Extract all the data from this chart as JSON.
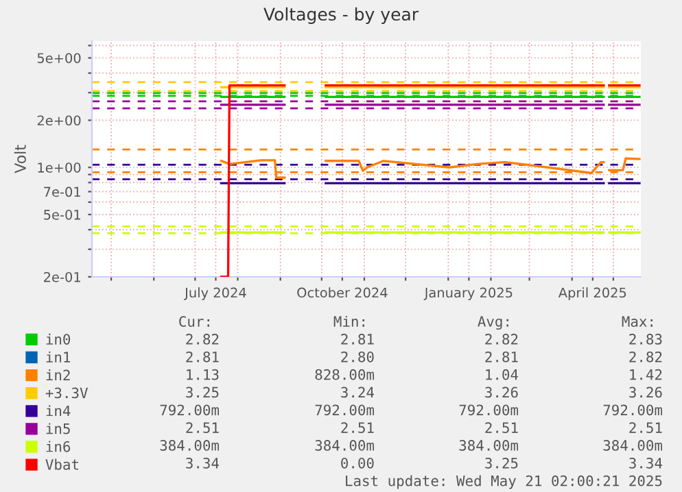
{
  "chart_data": {
    "type": "line",
    "title": "Voltages - by year",
    "ylabel": "Volt",
    "log": true,
    "grid": true,
    "legend": "bottom",
    "line_style": "solid",
    "marker": "none",
    "xlim": [
      "2024-04-17",
      "2025-05-21"
    ],
    "xticks": [
      {
        "value": "2024-05-01",
        "label": null
      },
      {
        "value": "2024-06-01",
        "label": null
      },
      {
        "value": "2024-07-01",
        "label": null
      },
      {
        "value": "2024-07-16",
        "label": "July 2024"
      },
      {
        "value": "2024-08-01",
        "label": null
      },
      {
        "value": "2024-09-01",
        "label": null
      },
      {
        "value": "2024-10-01",
        "label": null
      },
      {
        "value": "2024-10-16",
        "label": "October 2024"
      },
      {
        "value": "2024-11-01",
        "label": null
      },
      {
        "value": "2024-12-01",
        "label": null
      },
      {
        "value": "2025-01-01",
        "label": null
      },
      {
        "value": "2025-01-16",
        "label": "January 2025"
      },
      {
        "value": "2025-02-01",
        "label": null
      },
      {
        "value": "2025-03-01",
        "label": null
      },
      {
        "value": "2025-04-01",
        "label": null
      },
      {
        "value": "2025-04-16",
        "label": "April 2025"
      },
      {
        "value": "2025-05-01",
        "label": null
      }
    ],
    "ylim": [
      0.2,
      6.4
    ],
    "yticks": [
      {
        "value": 0.2,
        "label": "2e-01"
      },
      {
        "value": 0.3,
        "label": null
      },
      {
        "value": 0.4,
        "label": null
      },
      {
        "value": 0.5,
        "label": "5e-01"
      },
      {
        "value": 0.6,
        "label": null
      },
      {
        "value": 0.7,
        "label": "7e-01"
      },
      {
        "value": 0.8,
        "label": null
      },
      {
        "value": 0.9,
        "label": null
      },
      {
        "value": 1,
        "label": "1e+00"
      },
      {
        "value": 2,
        "label": "2e+00"
      },
      {
        "value": 3,
        "label": null
      },
      {
        "value": 4,
        "label": null
      },
      {
        "value": 5,
        "label": "5e+00"
      },
      {
        "value": 6,
        "label": null
      }
    ],
    "series": [
      {
        "name": "in0",
        "color": "#00cc00",
        "x": [
          "2024-07-20",
          "2024-09-04",
          "2024-09-20",
          "2024-10-04",
          "2025-04-24",
          "2025-04-26",
          "2025-04-28",
          "2025-05-20"
        ],
        "values": [
          2.82,
          2.82,
          null,
          2.82,
          2.82,
          null,
          2.82,
          2.82
        ]
      },
      {
        "name": "in1",
        "color": "#0066b3"
      },
      {
        "name": "in2",
        "color": "#ff8000",
        "x": [
          "2024-07-20",
          "2024-07-26",
          "2024-08-18",
          "2024-08-28",
          "2024-08-29",
          "2024-09-04",
          "2024-09-20",
          "2024-10-04",
          "2024-10-28",
          "2024-10-31",
          "2024-11-03",
          "2024-11-15",
          "2025-01-02",
          "2025-01-22",
          "2025-02-11",
          "2025-03-03",
          "2025-04-15",
          "2025-04-22",
          "2025-04-24",
          "2025-04-26",
          "2025-04-28",
          "2025-05-08",
          "2025-05-10",
          "2025-05-20"
        ],
        "values": [
          1.1,
          1.05,
          1.11,
          1.11,
          0.86,
          0.86,
          null,
          1.1,
          1.1,
          0.95,
          1.0,
          1.1,
          1.0,
          1.05,
          1.08,
          1.03,
          0.92,
          1.08,
          1.08,
          null,
          0.96,
          0.96,
          1.14,
          1.13
        ]
      },
      {
        "name": "+3.3V",
        "color": "#ffcc00",
        "x": [
          "2024-07-20",
          "2024-09-04",
          "2024-09-20",
          "2024-10-04",
          "2025-04-24",
          "2025-04-26",
          "2025-04-28",
          "2025-05-20"
        ],
        "values": [
          3.25,
          3.25,
          null,
          3.25,
          3.25,
          null,
          3.25,
          3.25
        ]
      },
      {
        "name": "in4",
        "color": "#330099",
        "x": [
          "2024-07-20",
          "2024-09-04",
          "2024-09-20",
          "2024-10-04",
          "2025-04-24",
          "2025-04-26",
          "2025-04-28",
          "2025-05-20"
        ],
        "values": [
          0.792,
          0.792,
          null,
          0.792,
          0.792,
          null,
          0.792,
          0.792
        ]
      },
      {
        "name": "in5",
        "color": "#990099",
        "x": [
          "2024-07-20",
          "2024-09-04",
          "2024-09-20",
          "2024-10-04",
          "2025-04-24",
          "2025-04-26",
          "2025-04-28",
          "2025-05-20"
        ],
        "values": [
          2.51,
          2.51,
          null,
          2.51,
          2.51,
          null,
          2.51,
          2.51
        ]
      },
      {
        "name": "in6",
        "color": "#ccff00",
        "x": [
          "2024-07-20",
          "2024-09-04",
          "2024-09-20",
          "2024-10-04",
          "2025-04-24",
          "2025-04-26",
          "2025-04-28",
          "2025-05-20"
        ],
        "values": [
          0.384,
          0.384,
          null,
          0.384,
          0.384,
          null,
          0.384,
          0.384
        ]
      },
      {
        "name": "Vbat",
        "color": "#ff0000",
        "x": [
          "2024-07-20",
          "2024-07-25",
          "2024-07-26",
          "2024-09-04",
          "2024-09-20",
          "2024-10-04",
          "2025-04-24",
          "2025-04-26",
          "2025-04-28",
          "2025-05-20"
        ],
        "values": [
          0.2,
          0.2,
          3.34,
          3.34,
          null,
          3.34,
          3.34,
          null,
          3.34,
          3.34
        ]
      }
    ],
    "ref_lines": [
      {
        "axis": "y",
        "value": 3.5,
        "color": "#ffcc00",
        "line_style": "dashed"
      },
      {
        "axis": "y",
        "value": 3.07,
        "color": "#ffcc00",
        "line_style": "dashed"
      },
      {
        "axis": "y",
        "value": 2.98,
        "color": "#00cc00",
        "line_style": "dashed"
      },
      {
        "axis": "y",
        "value": 2.86,
        "color": "#00cc00",
        "line_style": "dashed"
      },
      {
        "axis": "y",
        "value": 2.64,
        "color": "#990099",
        "line_style": "dashed"
      },
      {
        "axis": "y",
        "value": 2.38,
        "color": "#990099",
        "line_style": "dashed"
      },
      {
        "axis": "y",
        "value": 1.3,
        "color": "#ff8000",
        "line_style": "dashed"
      },
      {
        "axis": "y",
        "value": 1.04,
        "color": "#330099",
        "line_style": "dashed"
      },
      {
        "axis": "y",
        "value": 0.93,
        "color": "#ff8000",
        "line_style": "dashed"
      },
      {
        "axis": "y",
        "value": 0.84,
        "color": "#330099",
        "line_style": "dashed"
      },
      {
        "axis": "y",
        "value": 0.42,
        "color": "#ccff00",
        "line_style": "dashed"
      },
      {
        "axis": "y",
        "value": 0.38,
        "color": "#ccff00",
        "line_style": "dashed"
      }
    ],
    "annotations": [
      "Cur:",
      "Min:",
      "Avg:",
      "Max:",
      "2.82",
      "2.81",
      "2.82",
      "2.83",
      "2.81",
      "2.80",
      "2.81",
      "2.82",
      "1.13",
      "828.00m",
      "1.04",
      "1.42",
      "3.25",
      "3.24",
      "3.26",
      "3.26",
      "792.00m",
      "792.00m",
      "792.00m",
      "792.00m",
      "2.51",
      "2.51",
      "2.51",
      "2.51",
      "384.00m",
      "384.00m",
      "384.00m",
      "384.00m",
      "3.34",
      "0.00",
      "3.25",
      "3.34",
      "Last update: Wed May 21 02:00:21 2025"
    ]
  }
}
